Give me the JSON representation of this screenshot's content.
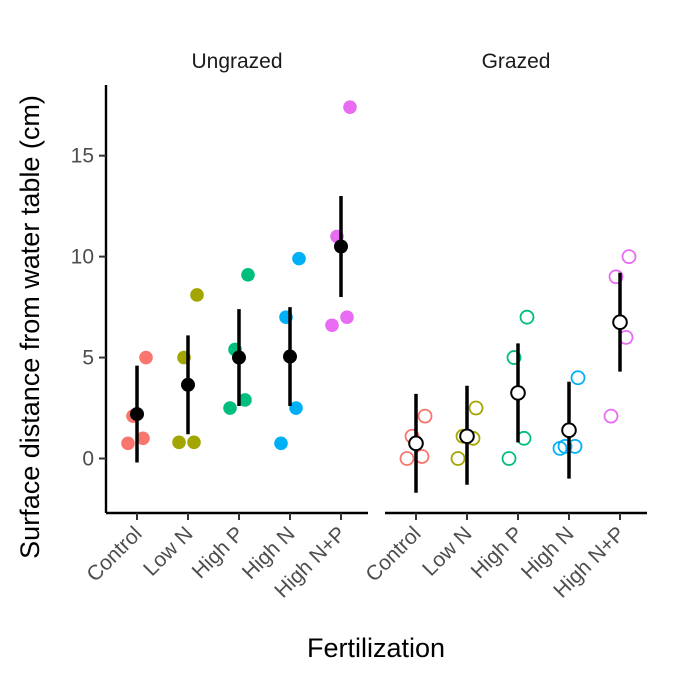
{
  "chart_data": {
    "type": "scatter",
    "xlabel": "Fertilization",
    "ylabel": "Surface distance from water table (cm)",
    "ylim": [
      -2.7,
      18.5
    ],
    "yticks": [
      0,
      5,
      10,
      15
    ],
    "categories": [
      "Control",
      "Low N",
      "High P",
      "High N",
      "High N+P"
    ],
    "category_colors": {
      "Control": "#F8766D",
      "Low N": "#A3A500",
      "High P": "#00BF7D",
      "High N": "#00B0F6",
      "High N+P": "#E76BF3"
    },
    "summary_color": "#000000",
    "grid": false,
    "legend": "none",
    "panels": [
      {
        "name": "Ungrazed",
        "marker": "filled",
        "groups": [
          {
            "category": "Control",
            "points": [
              0.75,
              1.0,
              2.1,
              5.0
            ],
            "mean": 2.2,
            "low": -0.2,
            "high": 4.6
          },
          {
            "category": "Low N",
            "points": [
              0.8,
              0.8,
              5.0,
              8.1
            ],
            "mean": 3.65,
            "low": 1.2,
            "high": 6.1
          },
          {
            "category": "High P",
            "points": [
              2.5,
              2.9,
              5.4,
              9.1
            ],
            "mean": 5.0,
            "low": 2.6,
            "high": 7.4
          },
          {
            "category": "High N",
            "points": [
              0.75,
              2.5,
              7.0,
              9.9
            ],
            "mean": 5.05,
            "low": 2.6,
            "high": 7.5
          },
          {
            "category": "High N+P",
            "points": [
              6.6,
              7.0,
              11.0,
              17.4
            ],
            "mean": 10.5,
            "low": 8.0,
            "high": 13.0
          }
        ]
      },
      {
        "name": "Grazed",
        "marker": "open",
        "groups": [
          {
            "category": "Control",
            "points": [
              0.0,
              0.1,
              1.1,
              2.1
            ],
            "mean": 0.75,
            "low": -1.7,
            "high": 3.2
          },
          {
            "category": "Low N",
            "points": [
              0.0,
              1.0,
              1.1,
              2.5
            ],
            "mean": 1.1,
            "low": -1.3,
            "high": 3.6
          },
          {
            "category": "High P",
            "points": [
              0.0,
              1.0,
              5.0,
              7.0
            ],
            "mean": 3.25,
            "low": 0.8,
            "high": 5.7
          },
          {
            "category": "High N",
            "points": [
              0.5,
              0.6,
              0.6,
              4.0
            ],
            "mean": 1.4,
            "low": -1.0,
            "high": 3.8
          },
          {
            "category": "High N+P",
            "points": [
              2.1,
              6.0,
              9.0,
              10.0
            ],
            "mean": 6.75,
            "low": 4.3,
            "high": 9.2
          }
        ]
      }
    ]
  }
}
